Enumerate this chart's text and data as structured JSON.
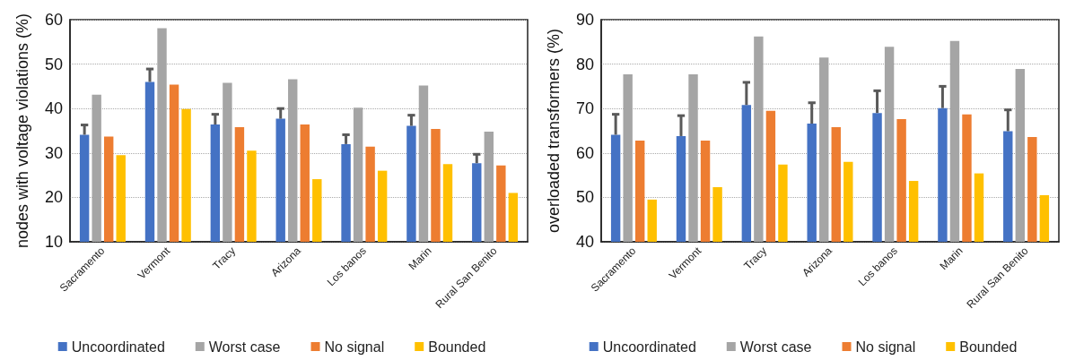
{
  "chart_data": [
    {
      "type": "bar",
      "ylabel": "nodes with voltage violations (%)",
      "categories": [
        "Sacramento",
        "Vermont",
        "Tracy",
        "Arizona",
        "Los banos",
        "Marin",
        "Rural San Benito"
      ],
      "ylim": [
        10,
        60
      ],
      "yticks": [
        10,
        20,
        30,
        40,
        50,
        60
      ],
      "grid": "y",
      "legend": "bottom",
      "series": [
        {
          "name": "Uncoordinated",
          "color": "#4472c4",
          "values": [
            34.1,
            46.0,
            36.4,
            37.7,
            32.0,
            36.1,
            27.7
          ],
          "errors": [
            [
              34.1,
              36.3
            ],
            [
              46.0,
              48.9
            ],
            [
              36.4,
              38.7
            ],
            [
              37.7,
              40.0
            ],
            [
              32.0,
              34.1
            ],
            [
              36.1,
              38.5
            ],
            [
              27.7,
              29.7
            ]
          ]
        },
        {
          "name": "Worst case",
          "color": "#a5a5a5",
          "values": [
            43.1,
            58.1,
            45.8,
            46.6,
            40.2,
            45.2,
            34.8
          ]
        },
        {
          "name": "No signal",
          "color": "#ed7d31",
          "values": [
            33.7,
            45.4,
            35.8,
            36.4,
            31.4,
            35.4,
            27.2
          ]
        },
        {
          "name": "Bounded",
          "color": "#ffc000",
          "values": [
            29.5,
            39.9,
            30.5,
            24.1,
            26.0,
            27.5,
            21.0
          ]
        }
      ]
    },
    {
      "type": "bar",
      "ylabel": "overloaded transformers (%)",
      "categories": [
        "Sacramento",
        "Vermont",
        "Tracy",
        "Arizona",
        "Los banos",
        "Marin",
        "Rural San Benito"
      ],
      "ylim": [
        40,
        90
      ],
      "yticks": [
        40,
        50,
        60,
        70,
        80,
        90
      ],
      "grid": "y",
      "legend": "bottom",
      "series": [
        {
          "name": "Uncoordinated",
          "color": "#4472c4",
          "values": [
            64.1,
            63.8,
            70.8,
            66.6,
            69.0,
            70.1,
            64.9
          ],
          "errors": [
            [
              64.1,
              68.7
            ],
            [
              63.8,
              68.4
            ],
            [
              70.8,
              75.9
            ],
            [
              66.6,
              71.3
            ],
            [
              69.0,
              74.0
            ],
            [
              70.1,
              75.0
            ],
            [
              64.9,
              69.7
            ]
          ]
        },
        {
          "name": "Worst case",
          "color": "#a5a5a5",
          "values": [
            77.7,
            77.7,
            86.2,
            81.5,
            83.9,
            85.2,
            78.9
          ]
        },
        {
          "name": "No signal",
          "color": "#ed7d31",
          "values": [
            62.8,
            62.8,
            69.5,
            65.8,
            67.6,
            68.7,
            63.6
          ]
        },
        {
          "name": "Bounded",
          "color": "#ffc000",
          "values": [
            49.5,
            52.3,
            57.4,
            58.0,
            53.7,
            55.4,
            50.5
          ]
        }
      ]
    }
  ]
}
